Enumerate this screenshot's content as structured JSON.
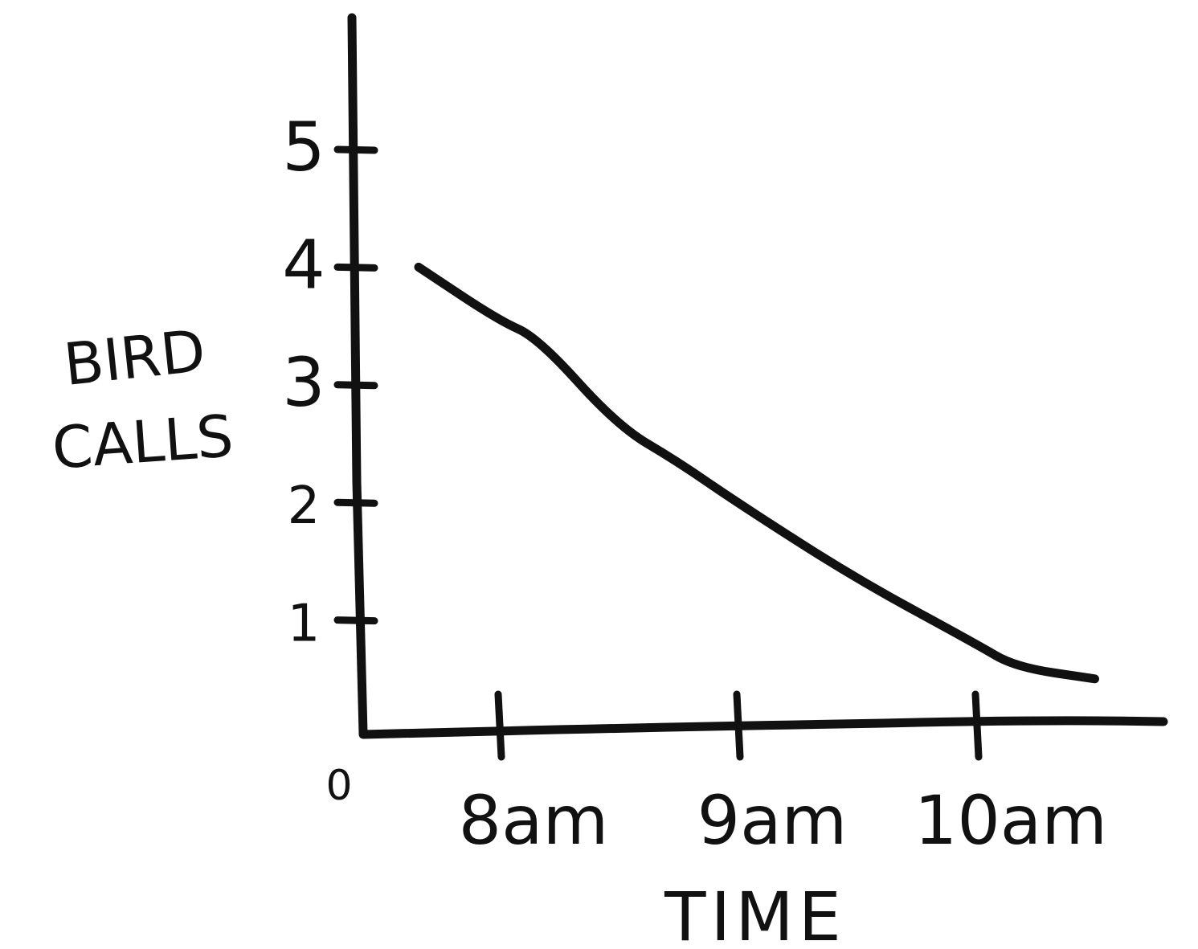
{
  "chart_data": {
    "type": "line",
    "title": "",
    "xlabel": "TIME",
    "ylabel": "BIRD CALLS",
    "x_tick_labels": [
      "8am",
      "9am",
      "10am"
    ],
    "y_tick_labels": [
      "1",
      "2",
      "3",
      "4",
      "5"
    ],
    "origin_label": "0",
    "xlim": [
      "7:30am",
      "11:00am"
    ],
    "ylim": [
      0,
      5.5
    ],
    "grid": false,
    "legend": "none",
    "series": [
      {
        "x": [
          "7:40am",
          "8am",
          "8:10am",
          "8:30am",
          "8:45am",
          "9am",
          "9:30am",
          "10am",
          "10:10am",
          "10:30am"
        ],
        "y": [
          4.0,
          3.55,
          3.4,
          2.65,
          2.35,
          2.0,
          1.35,
          0.8,
          0.6,
          0.5
        ]
      }
    ],
    "line_color": "#111111"
  }
}
